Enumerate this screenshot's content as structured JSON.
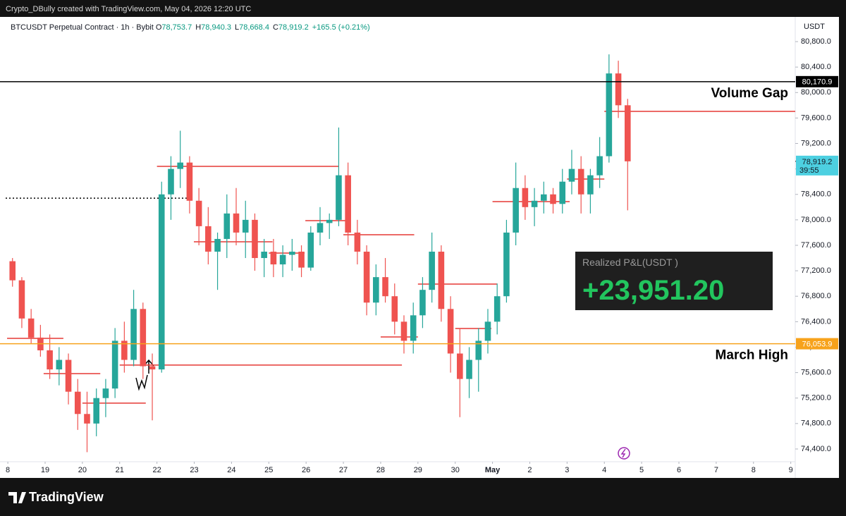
{
  "chart_data": {
    "type": "candlestick",
    "attribution": "Crypto_DBully created with TradingView.com, May 04, 2026 12:20 UTC",
    "brand": "TradingView",
    "header": {
      "symbol": "BTCUSDT Perpetual Contract · 1h · Bybit",
      "ohlc": [
        {
          "key": "O",
          "value": "78,753.7"
        },
        {
          "key": "H",
          "value": "78,940.3"
        },
        {
          "key": "L",
          "value": "78,668.4"
        },
        {
          "key": "C",
          "value": "78,919.2"
        }
      ],
      "change": "+165.5 (+0.21%)"
    },
    "y_unit": "USDT",
    "up_color": "#26a69a",
    "down_color": "#ef5350",
    "level_color": "#e53935",
    "xlim": [
      -0.21,
      21.12
    ],
    "ylim": [
      74200,
      81188
    ],
    "xticks": [
      {
        "value": 0,
        "label": "8"
      },
      {
        "value": 1,
        "label": "19"
      },
      {
        "value": 2,
        "label": "20"
      },
      {
        "value": 3,
        "label": "21"
      },
      {
        "value": 4,
        "label": "22"
      },
      {
        "value": 5,
        "label": "23"
      },
      {
        "value": 6,
        "label": "24"
      },
      {
        "value": 7,
        "label": "25"
      },
      {
        "value": 8,
        "label": "26"
      },
      {
        "value": 9,
        "label": "27"
      },
      {
        "value": 10,
        "label": "28"
      },
      {
        "value": 11,
        "label": "29"
      },
      {
        "value": 12,
        "label": "30"
      },
      {
        "value": 13,
        "label": "May"
      },
      {
        "value": 14,
        "label": "2"
      },
      {
        "value": 15,
        "label": "3"
      },
      {
        "value": 16,
        "label": "4"
      },
      {
        "value": 17,
        "label": "5"
      },
      {
        "value": 18,
        "label": "6"
      },
      {
        "value": 19,
        "label": "7"
      },
      {
        "value": 20,
        "label": "8"
      },
      {
        "value": 21,
        "label": "9"
      }
    ],
    "yticks": [
      {
        "value": 74400,
        "label": "74,400.0"
      },
      {
        "value": 74800,
        "label": "74,800.0"
      },
      {
        "value": 75200,
        "label": "75,200.0"
      },
      {
        "value": 75600,
        "label": "75,600.0"
      },
      {
        "value": 76000,
        "label": "76,000.0"
      },
      {
        "value": 76400,
        "label": "76,400.0"
      },
      {
        "value": 76800,
        "label": "76,800.0"
      },
      {
        "value": 77200,
        "label": "77,200.0"
      },
      {
        "value": 77600,
        "label": "77,600.0"
      },
      {
        "value": 78000,
        "label": "78,000.0"
      },
      {
        "value": 78400,
        "label": "78,400.0"
      },
      {
        "value": 78800,
        "label": "78,800.0"
      },
      {
        "value": 79200,
        "label": "79,200.0"
      },
      {
        "value": 79600,
        "label": "79,600.0"
      },
      {
        "value": 80000,
        "label": "80,000.0"
      },
      {
        "value": 80400,
        "label": "80,400.0"
      },
      {
        "value": 80800,
        "label": "80,800.0"
      }
    ],
    "candles": {
      "x": [
        0,
        0.25,
        0.5,
        0.75,
        1,
        1.25,
        1.5,
        1.75,
        2,
        2.25,
        2.5,
        2.75,
        3,
        3.25,
        3.5,
        3.75,
        4,
        4.25,
        4.5,
        4.75,
        5,
        5.25,
        5.5,
        5.75,
        6,
        6.25,
        6.5,
        6.75,
        7,
        7.25,
        7.5,
        7.75,
        8,
        8.25,
        8.5,
        8.75,
        9,
        9.25,
        9.5,
        9.75,
        10,
        10.25,
        10.5,
        10.75,
        11,
        11.25,
        11.5,
        11.75,
        12,
        12.25,
        12.5,
        12.75,
        13,
        13.25,
        13.5,
        13.75,
        14,
        14.25,
        14.5,
        14.75,
        15,
        15.25,
        15.5,
        15.75,
        16,
        16.25,
        16.5
      ],
      "open": [
        77350,
        77050,
        76450,
        76150,
        75950,
        75650,
        75800,
        75300,
        74950,
        74800,
        75200,
        75350,
        76100,
        75800,
        76600,
        75700,
        75650,
        78400,
        78800,
        78900,
        78300,
        77900,
        77500,
        77700,
        78100,
        77800,
        78000,
        77400,
        77500,
        77300,
        77450,
        77500,
        77250,
        77800,
        77950,
        78000,
        78700,
        77800,
        77500,
        76700,
        77100,
        76800,
        76400,
        76100,
        76500,
        76900,
        77500,
        76600,
        75900,
        75500,
        75800,
        76100,
        76400,
        76800,
        77800,
        78500,
        78200,
        78300,
        78400,
        78250,
        78600,
        78800,
        78400,
        78700,
        79000,
        80300,
        79800
      ],
      "high": [
        77400,
        77100,
        76600,
        76350,
        76200,
        76000,
        75900,
        75500,
        75300,
        75350,
        75500,
        76300,
        76400,
        76900,
        76700,
        75900,
        78600,
        79000,
        79400,
        79000,
        78500,
        78200,
        77800,
        78400,
        78500,
        78300,
        78100,
        77700,
        77700,
        77600,
        77700,
        77600,
        77900,
        78200,
        78100,
        79450,
        78900,
        78000,
        77600,
        77300,
        77400,
        77000,
        76500,
        76700,
        77100,
        77800,
        77600,
        76800,
        76300,
        76000,
        76300,
        76600,
        77000,
        78000,
        78900,
        78700,
        78500,
        78600,
        78500,
        78800,
        79100,
        79000,
        78800,
        79300,
        80600,
        80500,
        79900
      ],
      "low": [
        76950,
        76300,
        76050,
        75850,
        75500,
        75400,
        75100,
        74700,
        74350,
        74600,
        74900,
        75200,
        75600,
        75700,
        75500,
        74850,
        75600,
        78000,
        78500,
        78100,
        77600,
        77300,
        76900,
        77400,
        77600,
        77400,
        77200,
        77100,
        77100,
        77100,
        77200,
        77100,
        77200,
        77600,
        77700,
        77900,
        77600,
        77300,
        76500,
        76500,
        76700,
        76200,
        75900,
        75900,
        76300,
        76700,
        76400,
        75600,
        74900,
        75200,
        75300,
        75900,
        76200,
        76700,
        77600,
        78000,
        77900,
        78100,
        78100,
        78100,
        78400,
        78100,
        78100,
        78500,
        78900,
        79600,
        78150
      ],
      "close": [
        77050,
        76450,
        76150,
        75950,
        75650,
        75800,
        75300,
        74950,
        74800,
        75200,
        75350,
        76100,
        75800,
        76600,
        75700,
        75650,
        78400,
        78800,
        78900,
        78300,
        77900,
        77500,
        77700,
        78100,
        77800,
        78000,
        77400,
        77500,
        77300,
        77450,
        77500,
        77250,
        77800,
        77950,
        78000,
        78700,
        77800,
        77500,
        76700,
        77100,
        76800,
        76400,
        76100,
        76500,
        76900,
        77500,
        76600,
        75900,
        75500,
        75800,
        76100,
        76400,
        76800,
        77800,
        78500,
        78200,
        78300,
        78400,
        78250,
        78600,
        78800,
        78400,
        78700,
        79000,
        80300,
        79800,
        78919.2
      ]
    },
    "levels": [
      {
        "price": 78840,
        "from": 4.0,
        "to": 8.87
      },
      {
        "price": 76138,
        "from": -0.02,
        "to": 1.49
      },
      {
        "price": 75585,
        "from": 0.96,
        "to": 2.48
      },
      {
        "price": 75120,
        "from": 2.0,
        "to": 3.7
      },
      {
        "price": 75718,
        "from": 3.0,
        "to": 10.57
      },
      {
        "price": 77655,
        "from": 4.99,
        "to": 7.1
      },
      {
        "price": 77478,
        "from": 7.0,
        "to": 7.96
      },
      {
        "price": 77988,
        "from": 7.98,
        "to": 9.2
      },
      {
        "price": 77766,
        "from": 9.0,
        "to": 10.9
      },
      {
        "price": 76160,
        "from": 10.0,
        "to": 11.0
      },
      {
        "price": 76991,
        "from": 11.0,
        "to": 13.12
      },
      {
        "price": 76293,
        "from": 12.0,
        "to": 12.97
      },
      {
        "price": 78286,
        "from": 13.0,
        "to": 15.07
      },
      {
        "price": 78641,
        "from": 15.0,
        "to": 16.0
      },
      {
        "price": 79704,
        "from": 16.0,
        "to": 21.12
      }
    ],
    "hlines": [
      {
        "value": 80170.9,
        "label": "80,170.9",
        "color": "#000000",
        "text": "Volume Gap"
      },
      {
        "value": 76053.9,
        "label": "76,053.9",
        "color": "#f7a21b",
        "text": "March High"
      }
    ],
    "dotted_line": {
      "value": 78340,
      "to": 4.9
    },
    "last_price": {
      "value": 78919.2,
      "label": "78,919.2",
      "countdown": "39:55",
      "color": "#4dd0e1"
    },
    "pnl": {
      "label": "Realized P&L(USDT )",
      "value": "+23,951.20"
    }
  }
}
